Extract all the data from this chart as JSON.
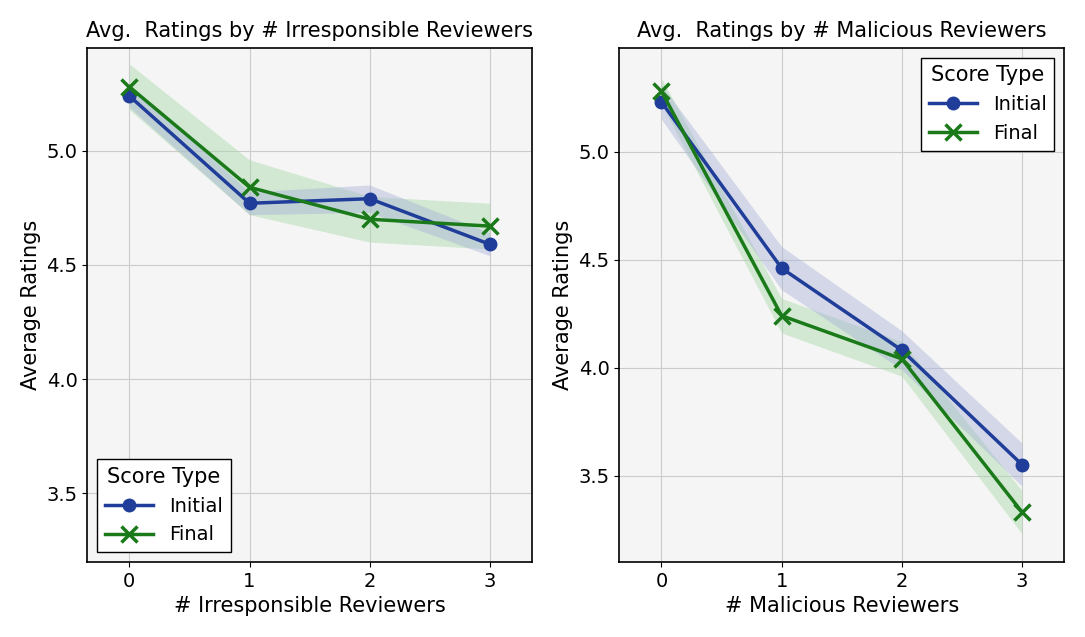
{
  "left": {
    "title": "Avg.  Ratings by # Irresponsible Reviewers",
    "xlabel": "# Irresponsible Reviewers",
    "ylabel": "Average Ratings",
    "x": [
      0,
      1,
      2,
      3
    ],
    "initial_mean": [
      5.24,
      4.77,
      4.79,
      4.59
    ],
    "initial_lower": [
      5.19,
      4.72,
      4.73,
      4.54
    ],
    "initial_upper": [
      5.29,
      4.82,
      4.85,
      4.64
    ],
    "final_mean": [
      5.28,
      4.84,
      4.7,
      4.67
    ],
    "final_lower": [
      5.18,
      4.72,
      4.6,
      4.57
    ],
    "final_upper": [
      5.38,
      4.96,
      4.8,
      4.77
    ],
    "ylim": [
      3.2,
      5.45
    ],
    "yticks": [
      3.5,
      4.0,
      4.5,
      5.0
    ]
  },
  "right": {
    "title": "Avg.  Ratings by # Malicious Reviewers",
    "xlabel": "# Malicious Reviewers",
    "ylabel": "Average Ratings",
    "x": [
      0,
      1,
      2,
      3
    ],
    "initial_mean": [
      5.23,
      4.46,
      4.08,
      3.55
    ],
    "initial_lower": [
      5.15,
      4.36,
      3.99,
      3.45
    ],
    "initial_upper": [
      5.31,
      4.56,
      4.17,
      3.65
    ],
    "final_mean": [
      5.28,
      4.24,
      4.04,
      3.33
    ],
    "final_lower": [
      5.22,
      4.16,
      3.96,
      3.23
    ],
    "final_upper": [
      5.34,
      4.32,
      4.12,
      3.43
    ],
    "ylim": [
      3.1,
      5.48
    ],
    "yticks": [
      3.5,
      4.0,
      4.5,
      5.0
    ]
  },
  "initial_color": "#1f3d99",
  "final_color": "#1a7a1a",
  "initial_fill": "#aab4d9",
  "final_fill": "#a8d9a8",
  "legend_title": "Score Type",
  "legend_initial": "Initial",
  "legend_final": "Final",
  "line_width": 2.5,
  "marker_size": 9,
  "title_fontsize": 15,
  "label_fontsize": 15,
  "tick_fontsize": 14,
  "legend_fontsize": 14,
  "legend_title_fontsize": 15
}
